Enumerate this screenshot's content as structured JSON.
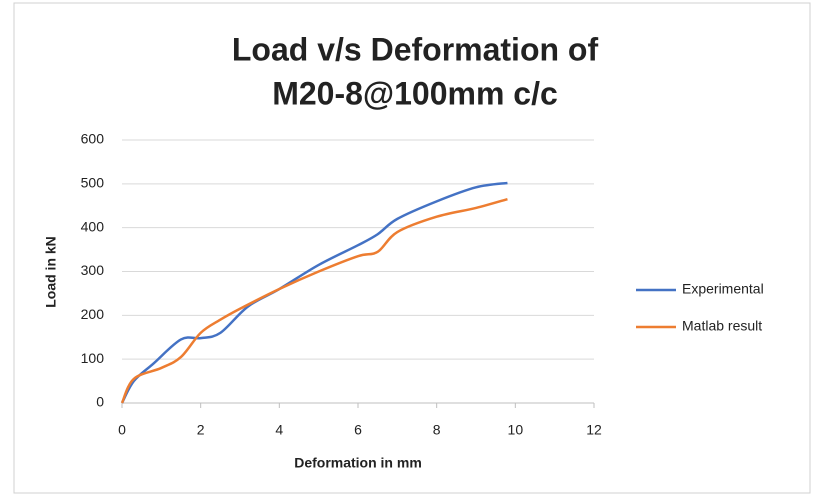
{
  "chart_data": {
    "type": "line",
    "title": [
      "Load v/s Deformation of",
      "M20-8@100mm c/c"
    ],
    "x_label": "Deformation in mm",
    "y_label": "Load in kN",
    "series": [
      {
        "name": "Experimental",
        "color": "#4472c4",
        "x": [
          0,
          0.3,
          0.8,
          1.5,
          2,
          2.5,
          3.2,
          4,
          5,
          6,
          6.5,
          7,
          8,
          9,
          9.8
        ],
        "values": [
          0,
          50,
          90,
          145,
          148,
          160,
          220,
          260,
          315,
          360,
          385,
          420,
          460,
          492,
          502
        ]
      },
      {
        "name": "Matlab result",
        "color": "#ed7d31",
        "x": [
          0,
          0.3,
          1,
          1.5,
          2,
          2.5,
          3,
          4,
          5,
          6,
          6.5,
          7,
          8,
          9,
          9.8
        ],
        "values": [
          0,
          55,
          80,
          105,
          160,
          190,
          215,
          260,
          300,
          335,
          345,
          390,
          425,
          445,
          465
        ]
      }
    ],
    "xlim": [
      0,
      12
    ],
    "xticks": [
      0,
      2,
      4,
      6,
      8,
      10,
      12
    ],
    "ylim": [
      0,
      600
    ],
    "yticks": [
      0,
      100,
      200,
      300,
      400,
      500,
      600
    ],
    "grid": true,
    "legend": "right"
  }
}
